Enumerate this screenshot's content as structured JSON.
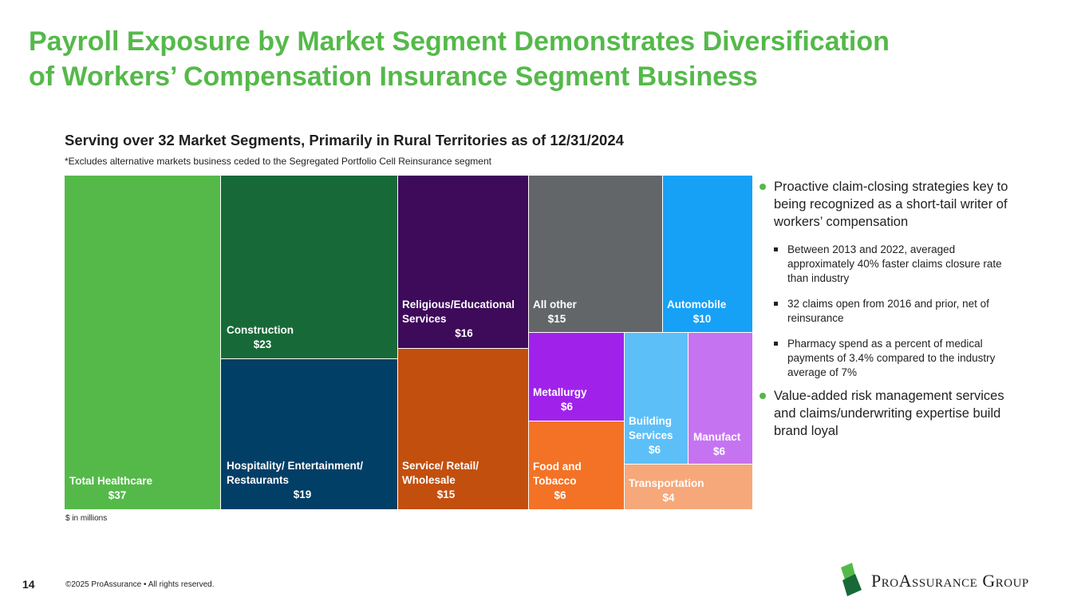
{
  "title": {
    "line1": "Payroll Exposure by Market Segment Demonstrates Diversification",
    "line2": "of Workers’ Compensation Insurance Segment Business"
  },
  "chart_data": {
    "type": "treemap",
    "title": "Serving over 32 Market Segments, Primarily in Rural Territories as of 12/31/2024",
    "note": "*Excludes alternative markets business ceded to the Segregated Portfolio Cell Reinsurance segment",
    "units_note": "$ in millions",
    "segments": [
      {
        "name": "Total Healthcare",
        "value": 37,
        "value_label": "$37",
        "color": "#55b94a"
      },
      {
        "name": "Construction",
        "value": 23,
        "value_label": "$23",
        "color": "#176a37"
      },
      {
        "name": "Hospitality/ Entertainment/ Restaurants",
        "value": 19,
        "value_label": "$19",
        "color": "#023f67"
      },
      {
        "name": "Religious/Educational Services",
        "value": 16,
        "value_label": "$16",
        "color": "#3e0a5a"
      },
      {
        "name": "Service/ Retail/ Wholesale",
        "value": 15,
        "value_label": "$15",
        "color": "#c24f0e"
      },
      {
        "name": "All other",
        "value": 15,
        "value_label": "$15",
        "color": "#636669"
      },
      {
        "name": "Automobile",
        "value": 10,
        "value_label": "$10",
        "color": "#16a1f7"
      },
      {
        "name": "Metallurgy",
        "value": 6,
        "value_label": "$6",
        "color": "#a022ea"
      },
      {
        "name": "Food and Tobacco",
        "value": 6,
        "value_label": "$6",
        "color": "#f47225"
      },
      {
        "name": "Building Services",
        "value": 6,
        "value_label": "$6",
        "color": "#5dbff8"
      },
      {
        "name": "Manufact",
        "value": 6,
        "value_label": "$6",
        "color": "#c673f2"
      },
      {
        "name": "Transportation",
        "value": 4,
        "value_label": "$4",
        "color": "#f6a87a"
      }
    ]
  },
  "bullets": [
    {
      "text": "Proactive claim-closing strategies key to being recognized as a short-tail writer of workers’ compensation",
      "sub": [
        "Between 2013 and 2022, averaged approximately 40% faster claims closure rate than industry",
        "32 claims open from 2016 and prior, net of reinsurance",
        "Pharmacy spend as a percent of medical payments of 3.4% compared to the industry average of 7%"
      ]
    },
    {
      "text": "Value-added risk management services and claims/underwriting expertise build brand loyal",
      "sub": []
    }
  ],
  "footer": {
    "page_number": "14",
    "copyright": "©2025 ProAssurance  •  All rights reserved."
  },
  "logo": {
    "text_P": "P",
    "text_ro": "RO",
    "text_A": "A",
    "text_ssurance": "SSURANCE",
    "text_G": "G",
    "text_roup": "ROUP",
    "colors": {
      "green": "#55b94a",
      "dark_green": "#176a37"
    }
  }
}
